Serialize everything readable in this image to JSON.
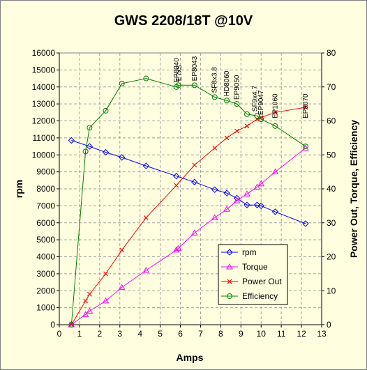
{
  "chart_data": {
    "type": "line",
    "title": "GWS 2208/18T @10V",
    "xlabel": "Amps",
    "ylabel": "rpm",
    "y2label": "Power Out, Torque, Efficiency",
    "xlim": [
      0,
      13
    ],
    "ylim": [
      0,
      16000
    ],
    "y2lim": [
      0,
      80
    ],
    "xticks": [
      "0",
      "1",
      "2",
      "3",
      "4",
      "5",
      "6",
      "7",
      "8",
      "9",
      "10",
      "11",
      "12",
      "13"
    ],
    "yticks": [
      "0",
      "1000",
      "2000",
      "3000",
      "4000",
      "5000",
      "6000",
      "7000",
      "8000",
      "9000",
      "10000",
      "11000",
      "12000",
      "13000",
      "14000",
      "15000",
      "16000"
    ],
    "y2ticks": [
      "0",
      "10",
      "20",
      "30",
      "40",
      "50",
      "60",
      "70",
      "80"
    ],
    "grid": true,
    "legend_position": "lower-right",
    "series": [
      {
        "name": "rpm",
        "axis": "left",
        "color": "#0000ff",
        "marker": "diamond",
        "x": [
          0.6,
          1.5,
          2.3,
          3.1,
          4.3,
          5.8,
          6.7,
          7.7,
          8.3,
          8.8,
          9.3,
          9.8,
          10.0,
          10.7,
          12.2
        ],
        "y": [
          10850,
          10500,
          10150,
          9850,
          9350,
          8750,
          8400,
          7950,
          7750,
          7450,
          7050,
          7050,
          7000,
          6650,
          5950
        ]
      },
      {
        "name": "Torque",
        "axis": "right",
        "color": "#ff00ff",
        "marker": "triangle",
        "x": [
          0.6,
          1.3,
          1.5,
          2.3,
          3.1,
          4.3,
          5.8,
          5.9,
          6.7,
          7.7,
          8.3,
          8.8,
          9.3,
          9.8,
          10.0,
          10.7,
          12.2
        ],
        "y": [
          0,
          3,
          4,
          7,
          11,
          16,
          22,
          22.5,
          27,
          31.5,
          34,
          36.5,
          38.5,
          40.5,
          41.5,
          45,
          52
        ]
      },
      {
        "name": "Power Out",
        "axis": "right",
        "color": "#ff0000",
        "marker": "x",
        "x": [
          0.6,
          1.3,
          1.5,
          2.3,
          3.1,
          4.3,
          5.8,
          6.7,
          7.7,
          8.3,
          8.8,
          9.3,
          9.8,
          10.0,
          10.7,
          12.2
        ],
        "y": [
          0,
          7,
          9,
          15,
          22,
          31.5,
          41,
          47,
          52,
          55,
          57,
          58.5,
          60.5,
          61,
          62.5,
          64
        ]
      },
      {
        "name": "Efficiency",
        "axis": "right",
        "color": "#008000",
        "marker": "circle",
        "x": [
          0.6,
          1.3,
          1.5,
          2.3,
          3.1,
          4.3,
          5.8,
          5.9,
          6.7,
          7.7,
          8.3,
          8.8,
          9.3,
          9.8,
          10.0,
          10.7,
          12.2
        ],
        "y": [
          0,
          51,
          58,
          63,
          71,
          72.5,
          70,
          70.5,
          70.5,
          67,
          66,
          65,
          62,
          61.5,
          60.5,
          58.5,
          52.5
        ]
      }
    ],
    "annotations": [
      {
        "text": "EP8040",
        "x": 5.8
      },
      {
        "text": "E7x5",
        "x": 5.95
      },
      {
        "text": "EP8043",
        "x": 6.7
      },
      {
        "text": "SF8x3.8",
        "x": 7.7
      },
      {
        "text": "HD8060",
        "x": 8.3
      },
      {
        "text": "EP9050",
        "x": 8.8
      },
      {
        "text": "SF9x4.7",
        "x": 9.7
      },
      {
        "text": "EP9047",
        "x": 10.0
      },
      {
        "text": "EP1060",
        "x": 10.7
      },
      {
        "text": "EP9070",
        "x": 12.2
      }
    ]
  }
}
